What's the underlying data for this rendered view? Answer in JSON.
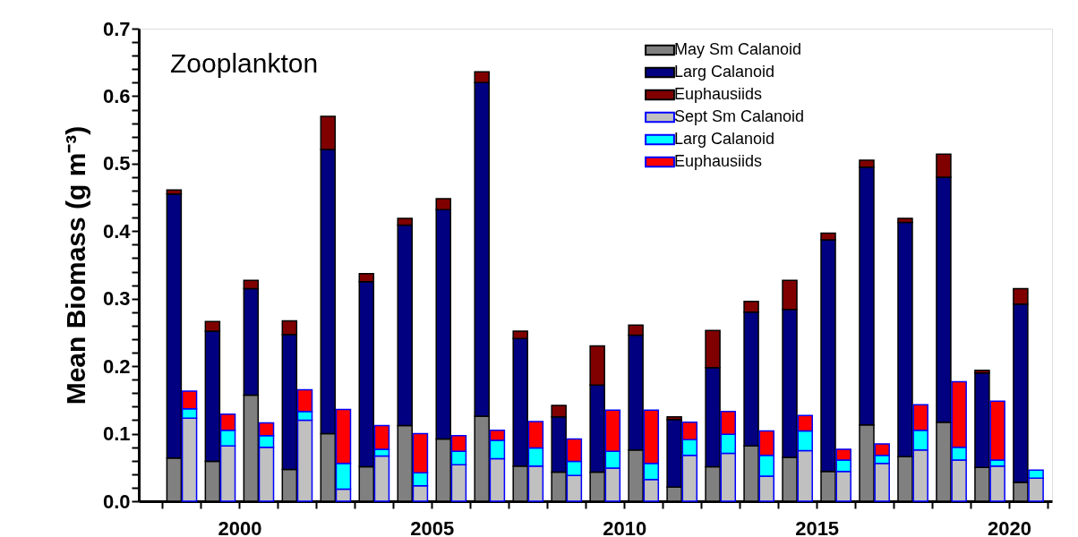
{
  "chart_data": {
    "type": "bar",
    "stacked": true,
    "ylabel": "Mean Biomass (g m⁻³)",
    "annotations": [
      "Zooplankton"
    ],
    "legend": "top right",
    "grid": false,
    "xlim": [
      1997.5,
      2021
    ],
    "xticks": [
      {
        "value": 1998,
        "label": null
      },
      {
        "value": 1999,
        "label": null
      },
      2000,
      {
        "value": 2001,
        "label": null
      },
      {
        "value": 2002,
        "label": null
      },
      {
        "value": 2003,
        "label": null
      },
      {
        "value": 2004,
        "label": null
      },
      2005,
      {
        "value": 2006,
        "label": null
      },
      {
        "value": 2007,
        "label": null
      },
      {
        "value": 2008,
        "label": null
      },
      {
        "value": 2009,
        "label": null
      },
      2010,
      {
        "value": 2011,
        "label": null
      },
      {
        "value": 2012,
        "label": null
      },
      {
        "value": 2013,
        "label": null
      },
      {
        "value": 2014,
        "label": null
      },
      2015,
      {
        "value": 2016,
        "label": null
      },
      {
        "value": 2017,
        "label": null
      },
      {
        "value": 2018,
        "label": null
      },
      {
        "value": 2019,
        "label": null
      },
      2020,
      {
        "value": 2021,
        "label": null
      }
    ],
    "ylim": [
      0,
      0.7
    ],
    "yticks": [
      {
        "value": 0,
        "label": "0.0"
      },
      {
        "value": 0.02,
        "label": null
      },
      {
        "value": 0.04,
        "label": null
      },
      {
        "value": 0.06,
        "label": null
      },
      {
        "value": 0.08,
        "label": null
      },
      0.1,
      {
        "value": 0.12,
        "label": null
      },
      {
        "value": 0.14,
        "label": null
      },
      {
        "value": 0.16,
        "label": null
      },
      {
        "value": 0.18,
        "label": null
      },
      0.2,
      {
        "value": 0.22,
        "label": null
      },
      {
        "value": 0.24,
        "label": null
      },
      {
        "value": 0.26,
        "label": null
      },
      {
        "value": 0.28,
        "label": null
      },
      0.3,
      {
        "value": 0.32,
        "label": null
      },
      {
        "value": 0.34,
        "label": null
      },
      {
        "value": 0.36,
        "label": null
      },
      {
        "value": 0.38,
        "label": null
      },
      0.4,
      {
        "value": 0.42,
        "label": null
      },
      {
        "value": 0.44,
        "label": null
      },
      {
        "value": 0.46,
        "label": null
      },
      {
        "value": 0.48,
        "label": null
      },
      0.5,
      {
        "value": 0.52,
        "label": null
      },
      {
        "value": 0.54,
        "label": null
      },
      {
        "value": 0.56,
        "label": null
      },
      {
        "value": 0.58,
        "label": null
      },
      0.6,
      {
        "value": 0.62,
        "label": null
      },
      {
        "value": 0.64,
        "label": null
      },
      {
        "value": 0.66,
        "label": null
      },
      {
        "value": 0.68,
        "label": null
      },
      0.7
    ],
    "x": [
      1998.3,
      1998.7,
      1999.3,
      1999.7,
      2000.3,
      2000.7,
      2001.3,
      2001.7,
      2002.3,
      2002.7,
      2003.3,
      2003.7,
      2004.3,
      2004.7,
      2005.3,
      2005.7,
      2006.3,
      2006.7,
      2007.3,
      2007.7,
      2008.3,
      2008.7,
      2009.3,
      2009.7,
      2010.3,
      2010.7,
      2011.3,
      2011.7,
      2012.3,
      2012.7,
      2013.3,
      2013.7,
      2014.3,
      2014.7,
      2015.3,
      2015.7,
      2016.3,
      2016.7,
      2017.3,
      2017.7,
      2018.3,
      2018.7,
      2019.3,
      2019.7,
      2020.3,
      2020.7
    ],
    "series": [
      {
        "name": "May Sm Calanoid",
        "color": "#808080",
        "values": [
          0.064,
          null,
          0.059,
          null,
          0.157,
          null,
          0.047,
          null,
          0.1,
          null,
          0.051,
          null,
          0.112,
          null,
          0.092,
          null,
          0.126,
          null,
          0.052,
          null,
          0.043,
          null,
          0.043,
          null,
          0.076,
          null,
          0.021,
          null,
          0.051,
          null,
          0.082,
          null,
          0.065,
          null,
          0.044,
          null,
          0.113,
          null,
          0.066,
          null,
          0.117,
          null,
          0.05,
          null,
          0.028,
          null
        ]
      },
      {
        "name": "Larg Calanoid",
        "color": "#000080",
        "values": [
          0.391,
          null,
          0.193,
          null,
          0.158,
          null,
          0.2,
          null,
          0.421,
          null,
          0.274,
          null,
          0.297,
          null,
          0.34,
          null,
          0.494,
          null,
          0.189,
          null,
          0.082,
          null,
          0.129,
          null,
          0.17,
          null,
          0.1,
          null,
          0.147,
          null,
          0.198,
          null,
          0.219,
          null,
          0.343,
          null,
          0.382,
          null,
          0.347,
          null,
          0.363,
          null,
          0.14,
          null,
          0.264,
          null
        ]
      },
      {
        "name": "Euphausiids",
        "color": "#800000",
        "values": [
          0.006,
          null,
          0.014,
          null,
          0.012,
          null,
          0.02,
          null,
          0.049,
          null,
          0.012,
          null,
          0.01,
          null,
          0.016,
          null,
          0.016,
          null,
          0.011,
          null,
          0.017,
          null,
          0.058,
          null,
          0.015,
          null,
          0.004,
          null,
          0.055,
          null,
          0.016,
          null,
          0.043,
          null,
          0.01,
          null,
          0.01,
          null,
          0.006,
          null,
          0.034,
          null,
          0.004,
          null,
          0.023,
          null
        ]
      },
      {
        "name": "Sept Sm Calanoid",
        "color": "#c0c0c0",
        "values": [
          null,
          0.123,
          null,
          0.082,
          null,
          0.08,
          null,
          0.12,
          null,
          0.018,
          null,
          0.067,
          null,
          0.023,
          null,
          0.054,
          null,
          0.063,
          null,
          0.052,
          null,
          0.038,
          null,
          0.049,
          null,
          0.032,
          null,
          0.068,
          null,
          0.071,
          null,
          0.037,
          null,
          0.075,
          null,
          0.044,
          null,
          0.056,
          null,
          0.076,
          null,
          0.061,
          null,
          0.052,
          null,
          0.034
        ]
      },
      {
        "name": "Larg Calanoid",
        "color": "#00ffff",
        "values": [
          null,
          0.014,
          null,
          0.023,
          null,
          0.017,
          null,
          0.013,
          null,
          0.038,
          null,
          0.01,
          null,
          0.019,
          null,
          0.02,
          null,
          0.027,
          null,
          0.027,
          null,
          0.021,
          null,
          0.025,
          null,
          0.024,
          null,
          0.023,
          null,
          0.028,
          null,
          0.031,
          null,
          0.029,
          null,
          0.017,
          null,
          0.012,
          null,
          0.029,
          null,
          0.019,
          null,
          0.009,
          null,
          0.012
        ]
      },
      {
        "name": "Euphausiids",
        "color": "#ff0000",
        "values": [
          null,
          0.026,
          null,
          0.024,
          null,
          0.019,
          null,
          0.032,
          null,
          0.08,
          null,
          0.035,
          null,
          0.058,
          null,
          0.023,
          null,
          0.015,
          null,
          0.039,
          null,
          0.033,
          null,
          0.061,
          null,
          0.079,
          null,
          0.026,
          null,
          0.034,
          null,
          0.036,
          null,
          0.023,
          null,
          0.016,
          null,
          0.017,
          null,
          0.038,
          null,
          0.097,
          null,
          0.087,
          null,
          null
        ]
      }
    ]
  }
}
